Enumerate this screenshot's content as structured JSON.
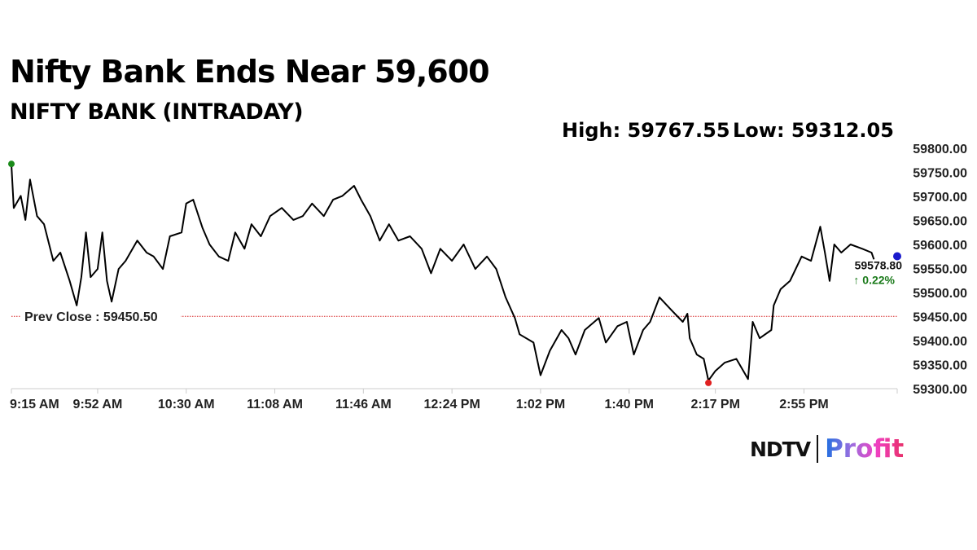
{
  "title": "Nifty Bank Ends Near 59,600",
  "subtitle": "NIFTY BANK (INTRADAY)",
  "high_label": "High: 59767.55",
  "low_label": "Low: 59312.05",
  "logo": {
    "brand": "NDTV",
    "product": "Profit"
  },
  "chart_data": {
    "type": "line",
    "title": "NIFTY BANK (INTRADAY)",
    "xlabel": "",
    "ylabel": "",
    "x_unit": "minutes since 9:15 AM",
    "xlim": [
      0,
      380
    ],
    "ylim": [
      59300,
      59800
    ],
    "y_ticks": [
      59300,
      59350,
      59400,
      59450,
      59500,
      59550,
      59600,
      59650,
      59700,
      59750,
      59800
    ],
    "y_tick_labels": [
      "59300.00",
      "59350.00",
      "59400.00",
      "59450.00",
      "59500.00",
      "59550.00",
      "59600.00",
      "59650.00",
      "59700.00",
      "59750.00",
      "59800.00"
    ],
    "x_ticks": [
      0,
      37,
      75,
      113,
      151,
      189,
      227,
      265,
      302,
      340
    ],
    "x_tick_labels": [
      "9:15 AM",
      "9:52 AM",
      "10:30 AM",
      "11:08 AM",
      "11:46 AM",
      "12:24 PM",
      "1:02 PM",
      "1:40 PM",
      "2:17 PM",
      "2:55 PM"
    ],
    "prev_close": 59450.5,
    "prev_close_label": "Prev Close : 59450.50",
    "last_value_label": "59578.80",
    "change_label": "↑ 0.22%",
    "high_point": [
      0,
      59767.55
    ],
    "low_point": [
      299,
      59312.05
    ],
    "last_point": [
      380,
      59578.8
    ],
    "colors": {
      "line": "#000000",
      "prev_close": "#d62020",
      "high": "#1a8a1a",
      "low": "#e02020",
      "last": "#1a1acc",
      "change": "#1a7a1a"
    },
    "series": [
      {
        "name": "NIFTY BANK",
        "points": [
          [
            0,
            59766
          ],
          [
            1,
            59676
          ],
          [
            4,
            59701
          ],
          [
            6,
            59651
          ],
          [
            8,
            59735
          ],
          [
            11,
            59659
          ],
          [
            14,
            59642
          ],
          [
            18,
            59566
          ],
          [
            21,
            59583
          ],
          [
            25,
            59524
          ],
          [
            28,
            59473
          ],
          [
            30,
            59532
          ],
          [
            32,
            59625
          ],
          [
            34,
            59532
          ],
          [
            37,
            59549
          ],
          [
            39,
            59625
          ],
          [
            41,
            59524
          ],
          [
            43,
            59481
          ],
          [
            46,
            59549
          ],
          [
            49,
            59566
          ],
          [
            54,
            59608
          ],
          [
            58,
            59583
          ],
          [
            61,
            59575
          ],
          [
            65,
            59549
          ],
          [
            68,
            59617
          ],
          [
            73,
            59625
          ],
          [
            75,
            59685
          ],
          [
            78,
            59693
          ],
          [
            82,
            59634
          ],
          [
            85,
            59600
          ],
          [
            89,
            59575
          ],
          [
            93,
            59566
          ],
          [
            96,
            59625
          ],
          [
            100,
            59591
          ],
          [
            103,
            59642
          ],
          [
            107,
            59617
          ],
          [
            111,
            59659
          ],
          [
            116,
            59676
          ],
          [
            121,
            59651
          ],
          [
            125,
            59659
          ],
          [
            129,
            59685
          ],
          [
            134,
            59659
          ],
          [
            138,
            59693
          ],
          [
            142,
            59701
          ],
          [
            147,
            59722
          ],
          [
            150,
            59693
          ],
          [
            154,
            59659
          ],
          [
            158,
            59608
          ],
          [
            162,
            59642
          ],
          [
            166,
            59608
          ],
          [
            171,
            59617
          ],
          [
            176,
            59591
          ],
          [
            180,
            59540
          ],
          [
            184,
            59591
          ],
          [
            189,
            59566
          ],
          [
            194,
            59600
          ],
          [
            199,
            59549
          ],
          [
            204,
            59575
          ],
          [
            208,
            59549
          ],
          [
            212,
            59490
          ],
          [
            216,
            59447
          ],
          [
            218,
            59413
          ],
          [
            224,
            59396
          ],
          [
            227,
            59328
          ],
          [
            231,
            59379
          ],
          [
            236,
            59422
          ],
          [
            239,
            59405
          ],
          [
            242,
            59371
          ],
          [
            246,
            59422
          ],
          [
            252,
            59447
          ],
          [
            255,
            59396
          ],
          [
            260,
            59430
          ],
          [
            264,
            59439
          ],
          [
            267,
            59371
          ],
          [
            271,
            59422
          ],
          [
            274,
            59439
          ],
          [
            278,
            59490
          ],
          [
            283,
            59464
          ],
          [
            288,
            59439
          ],
          [
            290,
            59456
          ],
          [
            291,
            59405
          ],
          [
            294,
            59371
          ],
          [
            297,
            59362
          ],
          [
            299,
            59317
          ],
          [
            302,
            59337
          ],
          [
            306,
            59354
          ],
          [
            311,
            59362
          ],
          [
            313,
            59345
          ],
          [
            316,
            59320
          ],
          [
            318,
            59439
          ],
          [
            321,
            59405
          ],
          [
            326,
            59422
          ],
          [
            327,
            59473
          ],
          [
            330,
            59507
          ],
          [
            334,
            59524
          ],
          [
            339,
            59575
          ],
          [
            343,
            59566
          ],
          [
            347,
            59637
          ],
          [
            349,
            59583
          ],
          [
            351,
            59524
          ],
          [
            353,
            59600
          ],
          [
            356,
            59583
          ],
          [
            360,
            59600
          ],
          [
            365,
            59591
          ],
          [
            369,
            59583
          ],
          [
            370,
            59569
          ]
        ]
      }
    ]
  }
}
